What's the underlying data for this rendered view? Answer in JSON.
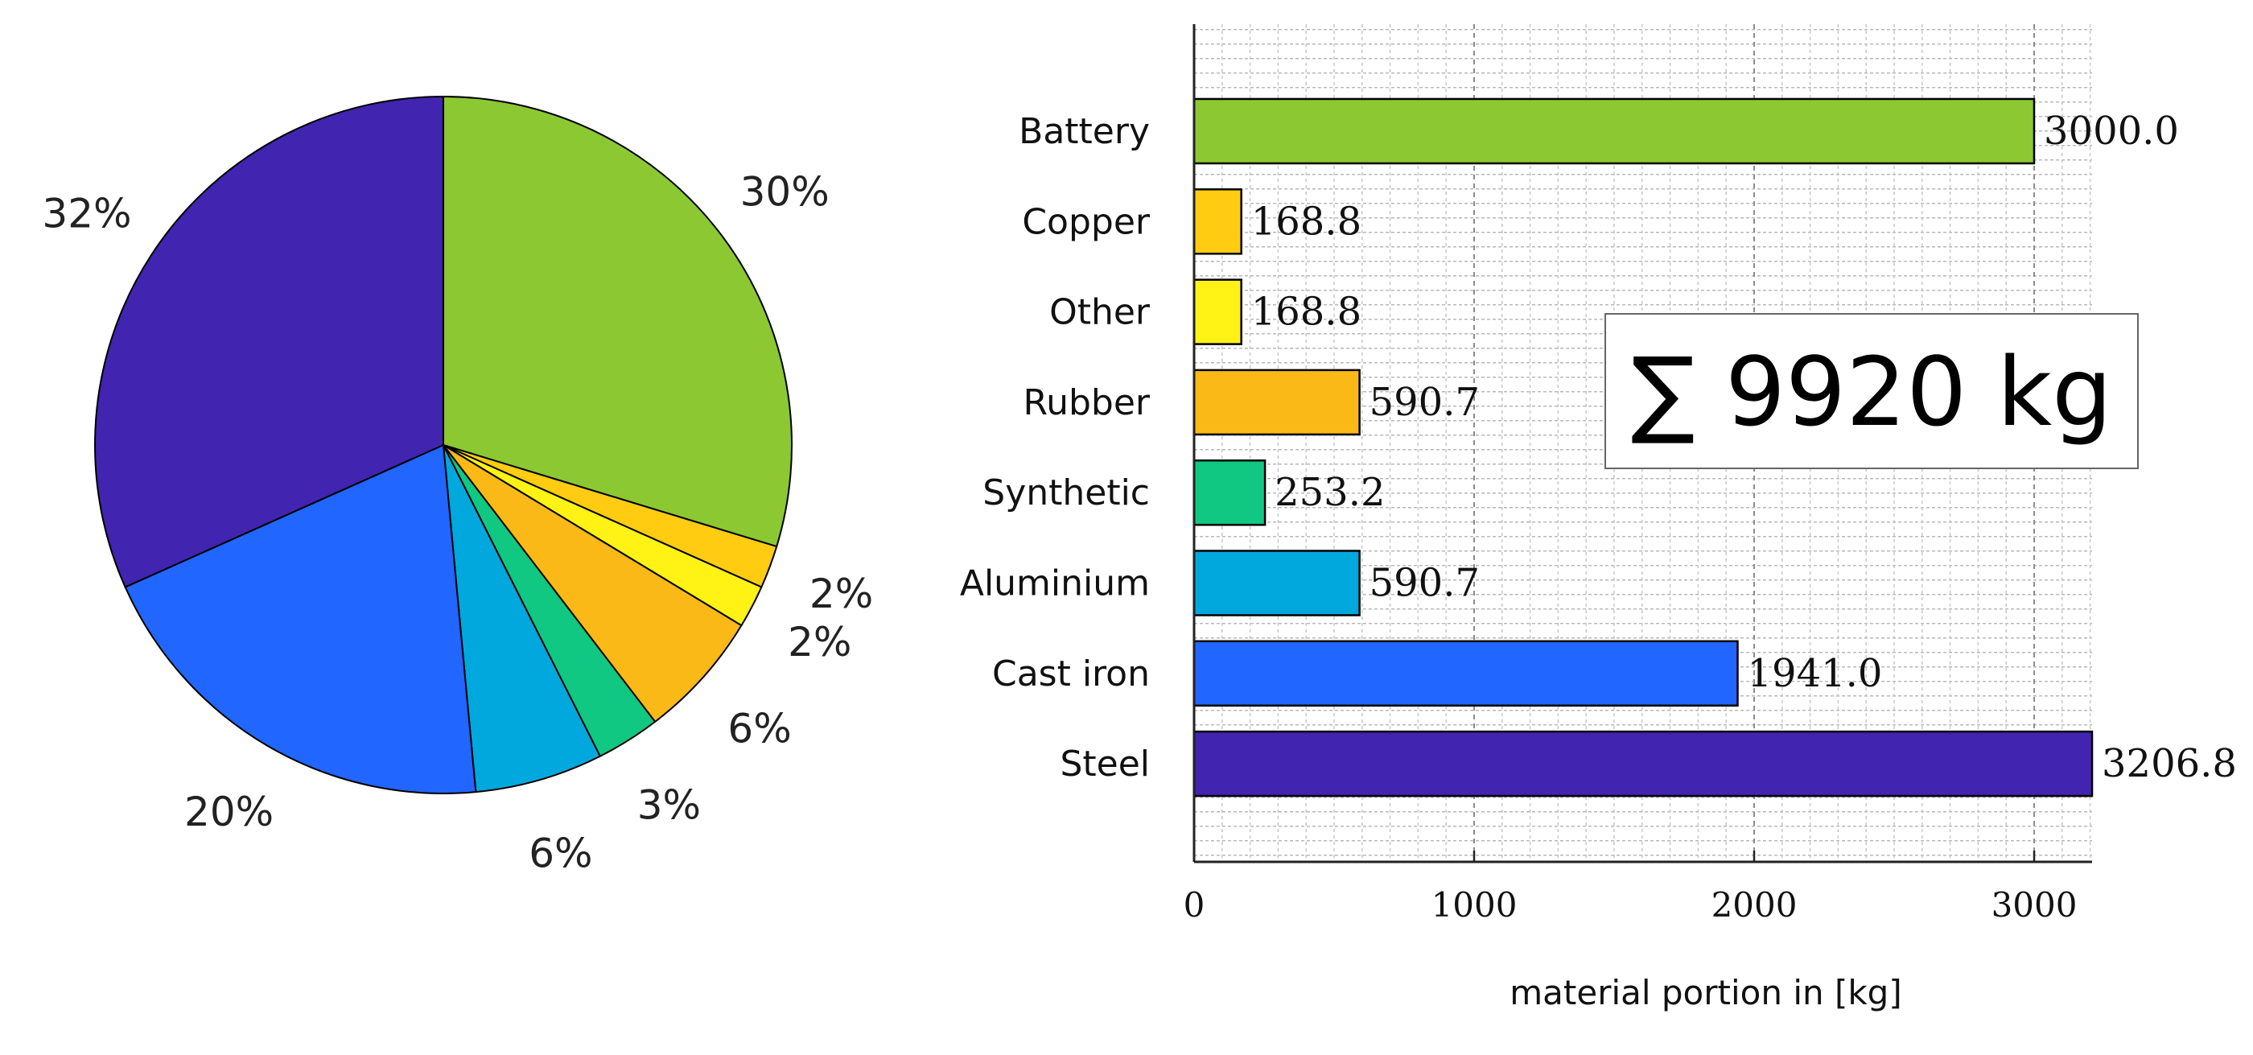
{
  "chart_data": [
    {
      "type": "pie",
      "categories": [
        "Battery",
        "Copper",
        "Other",
        "Rubber",
        "Synthetic",
        "Aluminium",
        "Cast iron",
        "Steel"
      ],
      "values": [
        30,
        2,
        2,
        6,
        3,
        6,
        20,
        32
      ],
      "labels": [
        "30%",
        "2%",
        "2%",
        "6%",
        "3%",
        "6%",
        "20%",
        "32%"
      ],
      "colors": [
        "#8CC832",
        "#FFCC11",
        "#FFF214",
        "#FBB918",
        "#10C882",
        "#00A8DD",
        "#2166FE",
        "#4124B0"
      ]
    },
    {
      "type": "bar",
      "orientation": "horizontal",
      "categories": [
        "Battery",
        "Copper",
        "Other",
        "Rubber",
        "Synthetic",
        "Aluminium",
        "Cast iron",
        "Steel"
      ],
      "values": [
        3000.0,
        168.8,
        168.8,
        590.7,
        253.2,
        590.7,
        1941.0,
        3206.8
      ],
      "value_labels": [
        "3000.0",
        "168.8",
        "168.8",
        "590.7",
        "253.2",
        "590.7",
        "1941.0",
        "3206.8"
      ],
      "colors": [
        "#8CC832",
        "#FFCC11",
        "#FFF214",
        "#FBB918",
        "#10C882",
        "#00A8DD",
        "#2166FE",
        "#4124B0"
      ],
      "xlabel": "material portion in [kg]",
      "ylabel": "",
      "xlim": [
        0,
        3206.8
      ],
      "xticks": [
        0,
        1000,
        2000,
        3000
      ],
      "xtick_labels": [
        "0",
        "1000",
        "2000",
        "3000"
      ],
      "grid": true,
      "annotation": "∑ 9920 kg"
    }
  ]
}
